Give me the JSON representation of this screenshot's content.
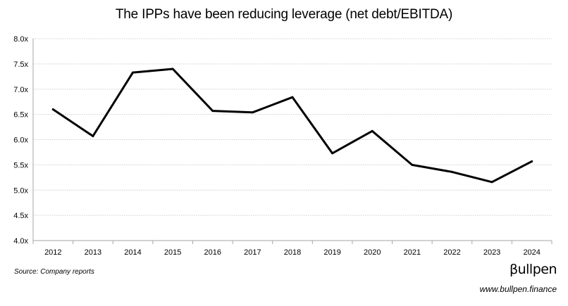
{
  "chart_data": {
    "type": "line",
    "title": "The IPPs have been reducing leverage (net debt/EBITDA)",
    "xlabel": "",
    "ylabel": "",
    "categories": [
      "2012",
      "2013",
      "2014",
      "2015",
      "2016",
      "2017",
      "2018",
      "2019",
      "2020",
      "2021",
      "2022",
      "2023",
      "2024"
    ],
    "series": [
      {
        "values": [
          6.6,
          6.07,
          7.33,
          7.4,
          6.57,
          6.54,
          6.84,
          5.73,
          6.17,
          5.5,
          5.36,
          5.16,
          5.57
        ],
        "color": "#000000"
      }
    ],
    "ylim": [
      4.0,
      8.0
    ],
    "yticks": [
      4.0,
      4.5,
      5.0,
      5.5,
      6.0,
      6.5,
      7.0,
      7.5,
      8.0
    ],
    "ytick_labels": [
      "4.0x",
      "4.5x",
      "5.0x",
      "5.5x",
      "6.0x",
      "6.5x",
      "7.0x",
      "7.5x",
      "8.0x"
    ],
    "grid": true,
    "legend": "none"
  },
  "footer": {
    "source": "Source: Company reports",
    "brand": "βullpen",
    "url": "www.bullpen.finance"
  }
}
